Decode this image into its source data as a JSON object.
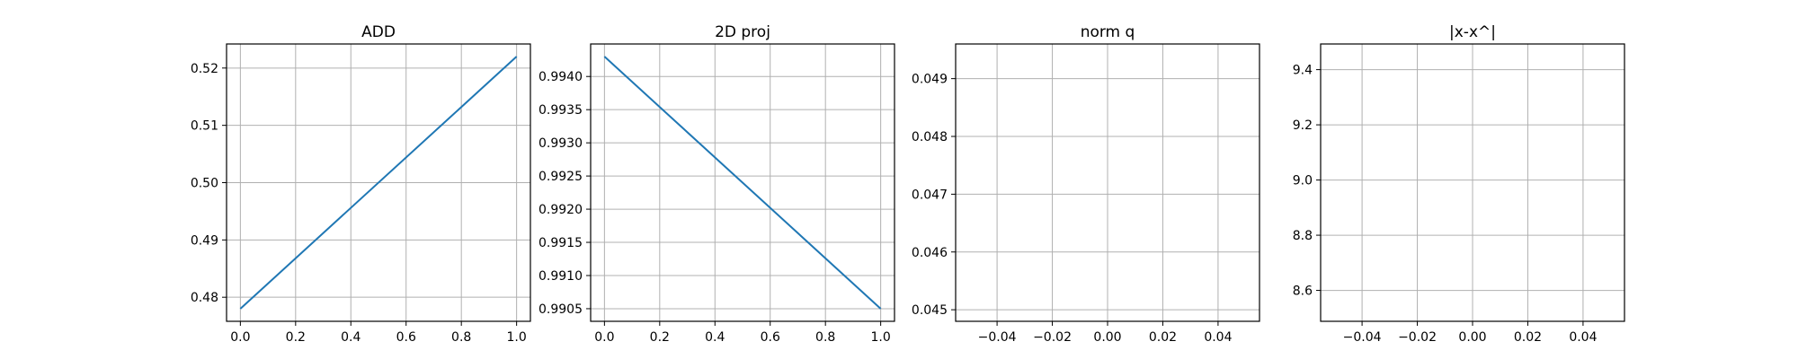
{
  "chart_data": [
    {
      "type": "line",
      "title": "ADD",
      "xlabel": "",
      "ylabel": "",
      "xlim": [
        -0.05,
        1.05
      ],
      "ylim": [
        0.4758,
        0.5242
      ],
      "grid": true,
      "xticks": [
        0.0,
        0.2,
        0.4,
        0.6,
        0.8,
        1.0
      ],
      "xtick_labels": [
        "0.0",
        "0.2",
        "0.4",
        "0.6",
        "0.8",
        "1.0"
      ],
      "yticks": [
        0.48,
        0.49,
        0.5,
        0.51,
        0.52
      ],
      "ytick_labels": [
        "0.48",
        "0.49",
        "0.50",
        "0.51",
        "0.52"
      ],
      "series": [
        {
          "color": "#1f77b4",
          "x": [
            0,
            1
          ],
          "y": [
            0.478,
            0.522
          ]
        }
      ]
    },
    {
      "type": "line",
      "title": "2D proj",
      "xlabel": "",
      "ylabel": "",
      "xlim": [
        -0.05,
        1.05
      ],
      "ylim": [
        0.99031,
        0.99449
      ],
      "grid": true,
      "xticks": [
        0.0,
        0.2,
        0.4,
        0.6,
        0.8,
        1.0
      ],
      "xtick_labels": [
        "0.0",
        "0.2",
        "0.4",
        "0.6",
        "0.8",
        "1.0"
      ],
      "yticks": [
        0.9905,
        0.991,
        0.9915,
        0.992,
        0.9925,
        0.993,
        0.9935,
        0.994
      ],
      "ytick_labels": [
        "0.9905",
        "0.9910",
        "0.9915",
        "0.9920",
        "0.9925",
        "0.9930",
        "0.9935",
        "0.9940"
      ],
      "series": [
        {
          "color": "#1f77b4",
          "x": [
            0,
            1
          ],
          "y": [
            0.9943,
            0.9905
          ]
        }
      ]
    },
    {
      "type": "line",
      "title": "norm q",
      "xlabel": "",
      "ylabel": "",
      "xlim": [
        -0.055,
        0.055
      ],
      "ylim": [
        0.0448,
        0.0496
      ],
      "grid": true,
      "xticks": [
        -0.04,
        -0.02,
        0.0,
        0.02,
        0.04
      ],
      "xtick_labels": [
        "−0.04",
        "−0.02",
        "0.00",
        "0.02",
        "0.04"
      ],
      "yticks": [
        0.045,
        0.046,
        0.047,
        0.048,
        0.049
      ],
      "ytick_labels": [
        "0.045",
        "0.046",
        "0.047",
        "0.048",
        "0.049"
      ],
      "series": []
    },
    {
      "type": "line",
      "title": "|x-x^|",
      "xlabel": "",
      "ylabel": "",
      "xlim": [
        -0.055,
        0.055
      ],
      "ylim": [
        8.488,
        9.493
      ],
      "grid": true,
      "xticks": [
        -0.04,
        -0.02,
        0.0,
        0.02,
        0.04
      ],
      "xtick_labels": [
        "−0.04",
        "−0.02",
        "0.00",
        "0.02",
        "0.04"
      ],
      "yticks": [
        8.6,
        8.8,
        9.0,
        9.2,
        9.4
      ],
      "ytick_labels": [
        "8.6",
        "8.8",
        "9.0",
        "9.2",
        "9.4"
      ],
      "series": []
    }
  ]
}
